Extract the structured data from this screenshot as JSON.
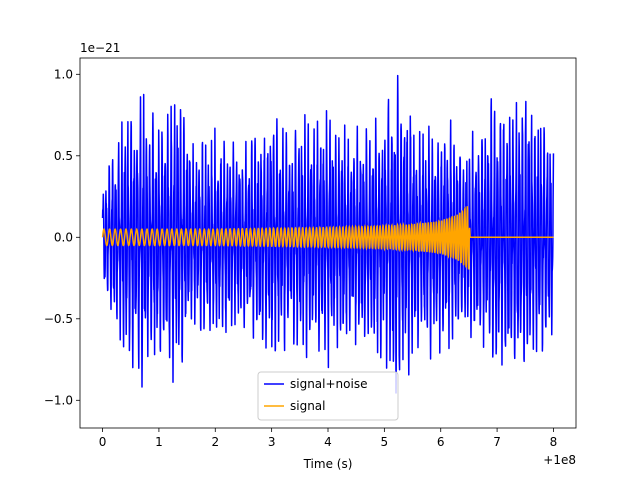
{
  "chart_data": {
    "type": "line",
    "title": "",
    "xlabel": "Time (s)",
    "ylabel": "",
    "x_offset_label": "+1e8",
    "y_scale_label": "1e−21",
    "xlim": [
      -0.4,
      8.4
    ],
    "ylim": [
      -1.17,
      1.1
    ],
    "x_ticks": [
      0,
      1,
      2,
      3,
      4,
      5,
      6,
      7,
      8
    ],
    "x_tick_labels": [
      "0",
      "1",
      "2",
      "3",
      "4",
      "5",
      "6",
      "7",
      "8"
    ],
    "y_ticks": [
      -1.0,
      -0.5,
      0.0,
      0.5,
      1.0
    ],
    "y_tick_labels": [
      "−1.0",
      "−0.5",
      "0.0",
      "0.5",
      "1.0"
    ],
    "grid": false,
    "legend_position": "lower-center",
    "series": [
      {
        "name": "signal+noise",
        "color": "#0000ff",
        "description_values": "noisy strain, range approx -1.05 to 1.0 (x1e-21) over t = 0..8 s",
        "amplitude_envelope": [
          [
            0.0,
            0.3
          ],
          [
            0.3,
            0.6
          ],
          [
            0.5,
            0.75
          ],
          [
            0.7,
            0.85
          ],
          [
            1.0,
            0.65
          ],
          [
            1.3,
            0.9
          ],
          [
            1.6,
            0.5
          ],
          [
            2.0,
            0.6
          ],
          [
            2.5,
            0.55
          ],
          [
            3.0,
            0.7
          ],
          [
            3.3,
            0.6
          ],
          [
            3.6,
            0.65
          ],
          [
            4.0,
            0.7
          ],
          [
            4.5,
            0.6
          ],
          [
            5.0,
            0.7
          ],
          [
            5.2,
            0.95
          ],
          [
            5.6,
            0.6
          ],
          [
            6.0,
            0.65
          ],
          [
            6.5,
            0.55
          ],
          [
            7.0,
            0.8
          ],
          [
            7.5,
            0.85
          ],
          [
            8.0,
            0.55
          ]
        ]
      },
      {
        "name": "signal",
        "color": "#ffa500",
        "description_values": "chirp; amplitude approx 0.05 at t=0 rising to approx 0.2 at t=6.5, then 0 until t=8",
        "amplitude_envelope": [
          [
            0.0,
            0.05
          ],
          [
            2.0,
            0.05
          ],
          [
            4.0,
            0.06
          ],
          [
            5.0,
            0.07
          ],
          [
            5.5,
            0.08
          ],
          [
            6.0,
            0.1
          ],
          [
            6.3,
            0.14
          ],
          [
            6.5,
            0.2
          ],
          [
            6.52,
            0.0
          ],
          [
            8.0,
            0.0
          ]
        ]
      }
    ]
  },
  "colors": {
    "noise_series": "#0000ff",
    "signal_series": "#ffa500",
    "axes": "#000000",
    "legend_border": "#cccccc"
  }
}
